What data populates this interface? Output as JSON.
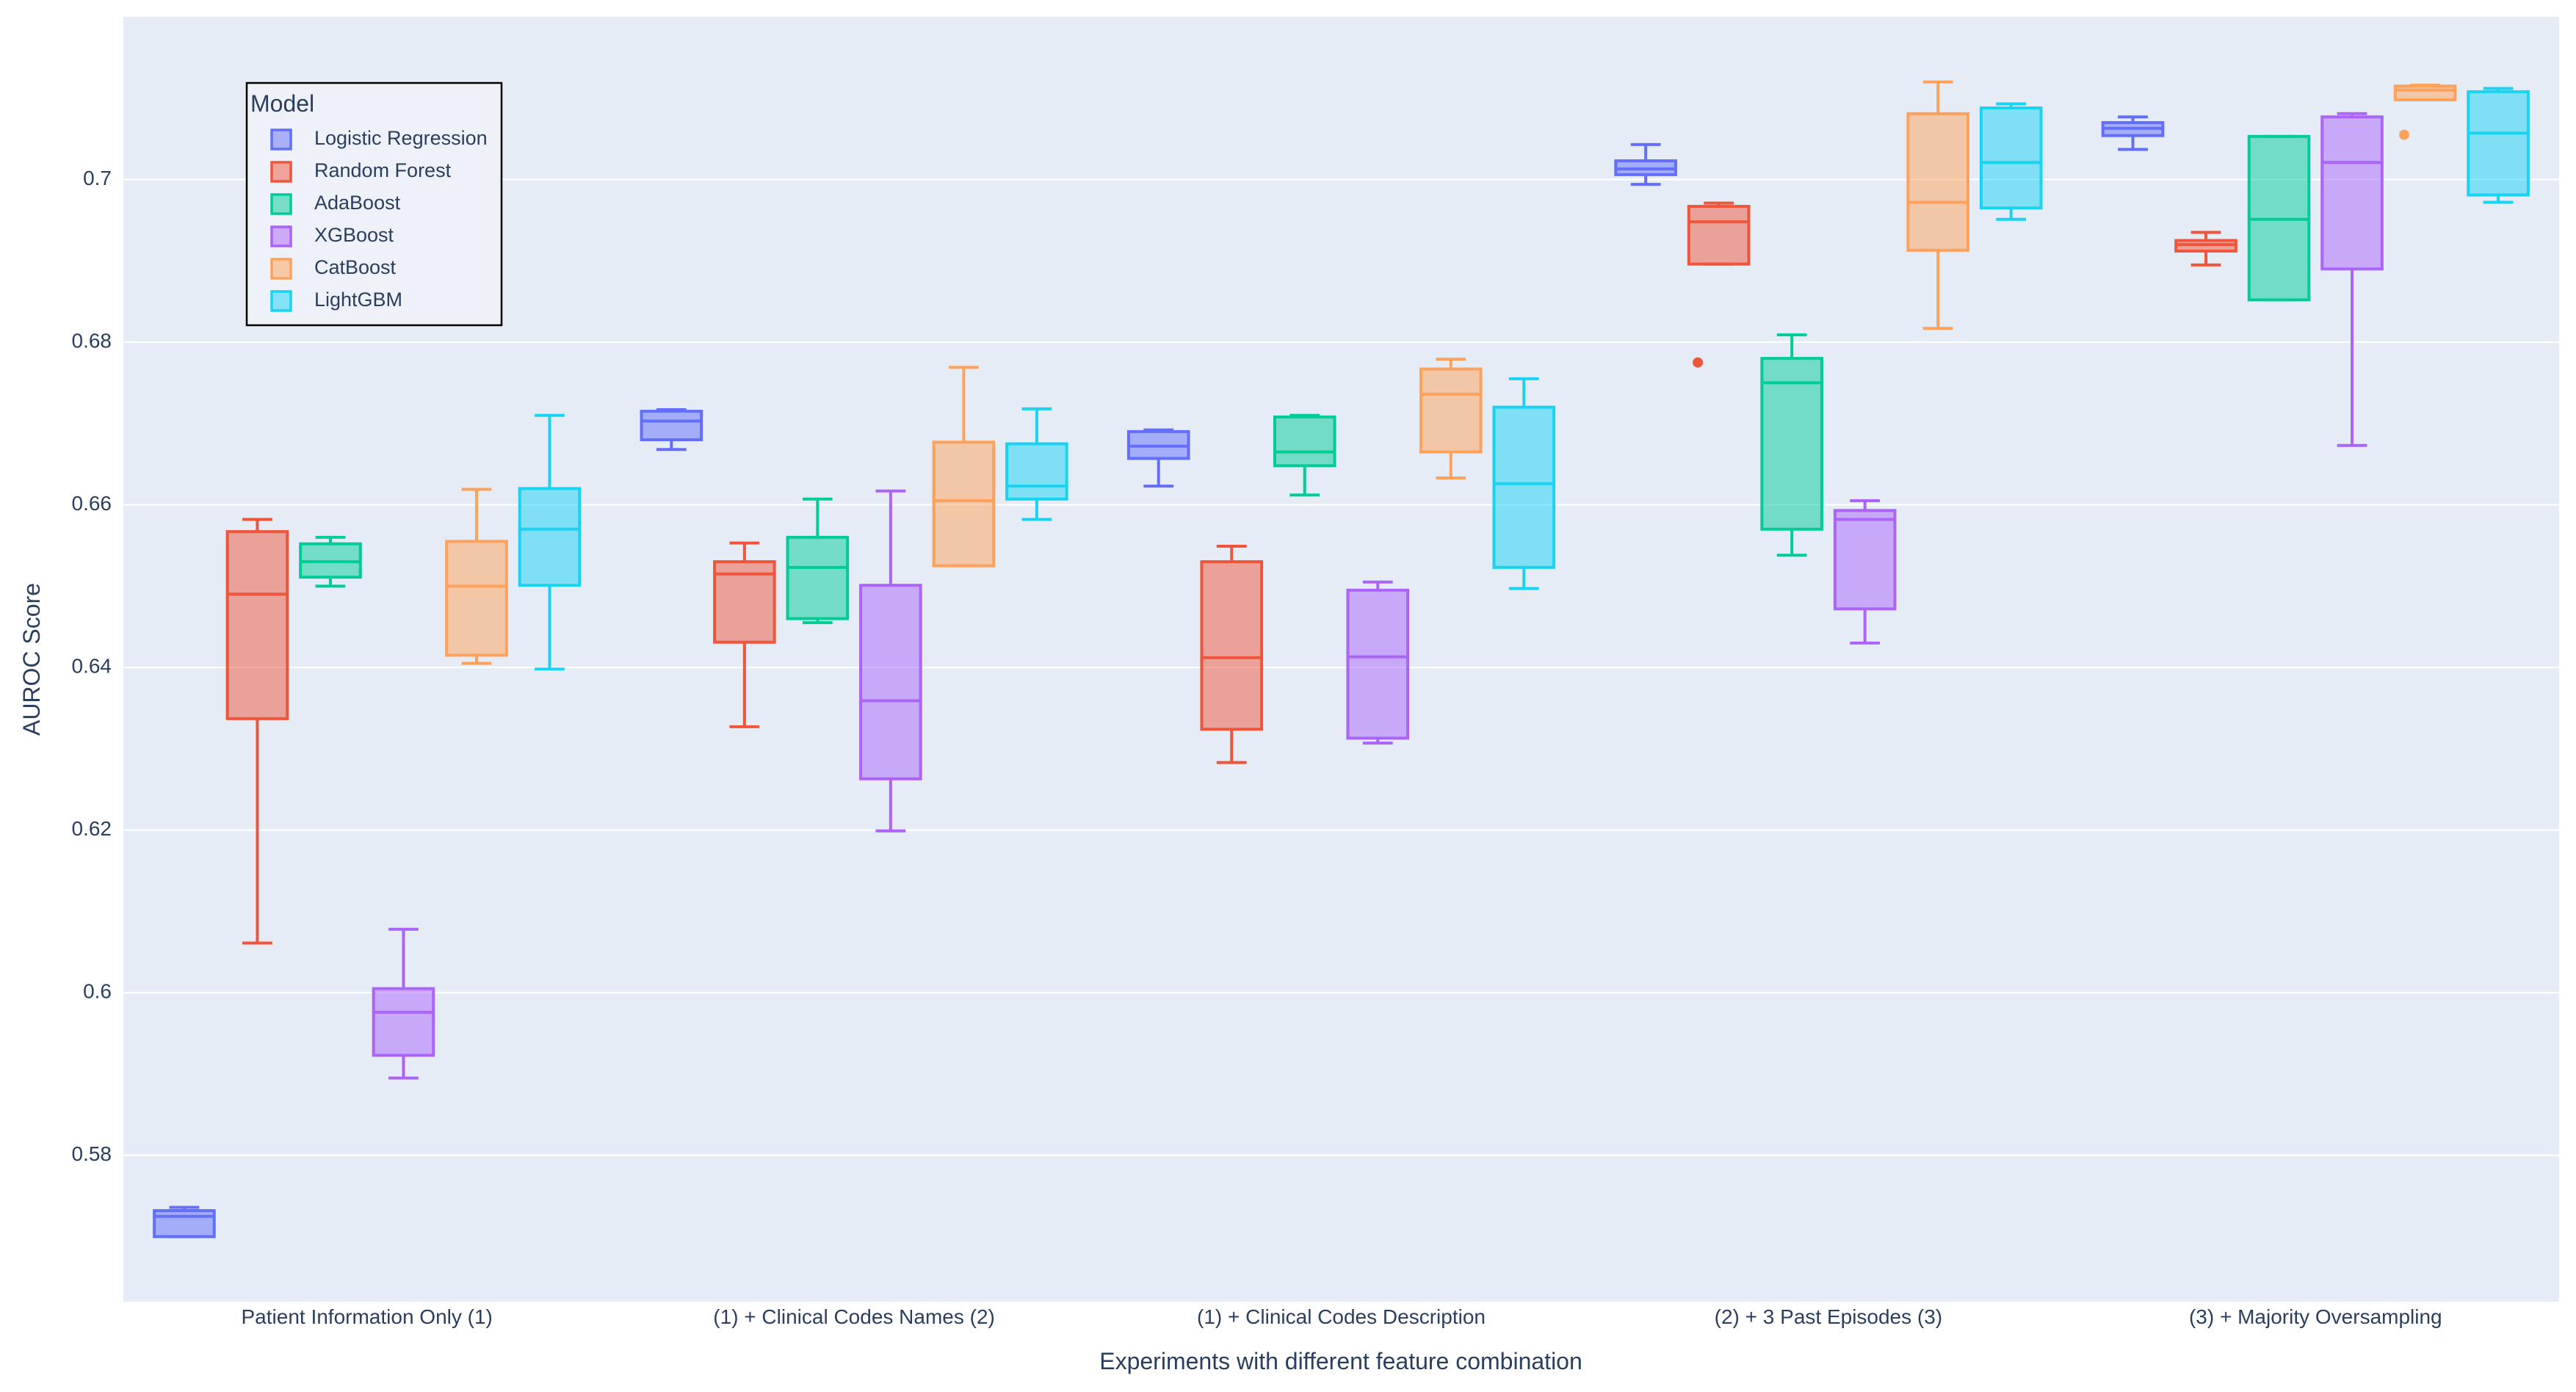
{
  "chart_data": {
    "type": "box",
    "title": "",
    "xlabel": "Experiments with different feature combination",
    "ylabel": "AUROC Score",
    "ylim": [
      0.562,
      0.72
    ],
    "yticks": [
      0.58,
      0.6,
      0.62,
      0.64,
      0.66,
      0.68,
      0.7
    ],
    "ytick_labels": [
      "0.58",
      "0.6",
      "0.62",
      "0.64",
      "0.66",
      "0.68",
      "0.7"
    ],
    "categories": [
      "Patient Information Only (1)",
      "(1) + Clinical Codes Names (2)",
      "(1) + Clinical Codes Description",
      "(2) + 3 Past Episodes (3)",
      "(3) + Majority Oversampling"
    ],
    "legend": {
      "title": "Model",
      "position": "top-left"
    },
    "series": [
      {
        "name": "Logistic Regression",
        "color": "#636efa",
        "boxes": [
          {
            "min": 0.57,
            "q1": 0.57,
            "median": 0.5725,
            "q3": 0.5732,
            "max": 0.5736,
            "outliers": []
          },
          {
            "min": 0.6668,
            "q1": 0.668,
            "median": 0.6703,
            "q3": 0.6715,
            "max": 0.6717,
            "outliers": []
          },
          {
            "min": 0.6623,
            "q1": 0.6657,
            "median": 0.6672,
            "q3": 0.669,
            "max": 0.6692,
            "outliers": []
          },
          {
            "min": 0.6994,
            "q1": 0.7006,
            "median": 0.7013,
            "q3": 0.7023,
            "max": 0.7043,
            "outliers": []
          },
          {
            "min": 0.7037,
            "q1": 0.7054,
            "median": 0.7063,
            "q3": 0.707,
            "max": 0.7077,
            "outliers": []
          }
        ]
      },
      {
        "name": "Random Forest",
        "color": "#ef553b",
        "boxes": [
          {
            "min": 0.6061,
            "q1": 0.6337,
            "median": 0.649,
            "q3": 0.6567,
            "max": 0.6582,
            "outliers": []
          },
          {
            "min": 0.6327,
            "q1": 0.6431,
            "median": 0.6515,
            "q3": 0.653,
            "max": 0.6553,
            "outliers": []
          },
          {
            "min": 0.6283,
            "q1": 0.6324,
            "median": 0.6412,
            "q3": 0.653,
            "max": 0.6549,
            "outliers": []
          },
          {
            "min": 0.6896,
            "q1": 0.6896,
            "median": 0.6948,
            "q3": 0.6967,
            "max": 0.6971,
            "outliers": [
              0.6775
            ]
          },
          {
            "min": 0.6895,
            "q1": 0.6912,
            "median": 0.692,
            "q3": 0.6925,
            "max": 0.6935,
            "outliers": []
          }
        ]
      },
      {
        "name": "AdaBoost",
        "color": "#00cc96",
        "boxes": [
          {
            "min": 0.65,
            "q1": 0.6511,
            "median": 0.653,
            "q3": 0.6552,
            "max": 0.656,
            "outliers": []
          },
          {
            "min": 0.6455,
            "q1": 0.646,
            "median": 0.6523,
            "q3": 0.656,
            "max": 0.6607,
            "outliers": []
          },
          {
            "min": 0.6612,
            "q1": 0.6648,
            "median": 0.6665,
            "q3": 0.6708,
            "max": 0.671,
            "outliers": []
          },
          {
            "min": 0.6538,
            "q1": 0.657,
            "median": 0.675,
            "q3": 0.678,
            "max": 0.6809,
            "outliers": []
          },
          {
            "min": 0.6852,
            "q1": 0.6852,
            "median": 0.6951,
            "q3": 0.7053,
            "max": 0.7053,
            "outliers": []
          }
        ]
      },
      {
        "name": "XGBoost",
        "color": "#ab63fa",
        "boxes": [
          {
            "min": 0.5895,
            "q1": 0.5923,
            "median": 0.5976,
            "q3": 0.6005,
            "max": 0.6078,
            "outliers": []
          },
          {
            "min": 0.6199,
            "q1": 0.6263,
            "median": 0.6359,
            "q3": 0.6501,
            "max": 0.6617,
            "outliers": []
          },
          {
            "min": 0.6307,
            "q1": 0.6313,
            "median": 0.6413,
            "q3": 0.6495,
            "max": 0.6505,
            "outliers": []
          },
          {
            "min": 0.643,
            "q1": 0.6472,
            "median": 0.6582,
            "q3": 0.6593,
            "max": 0.6605,
            "outliers": []
          },
          {
            "min": 0.6673,
            "q1": 0.689,
            "median": 0.7021,
            "q3": 0.7077,
            "max": 0.7081,
            "outliers": []
          }
        ]
      },
      {
        "name": "CatBoost",
        "color": "#ffa15a",
        "boxes": [
          {
            "min": 0.6405,
            "q1": 0.6415,
            "median": 0.65,
            "q3": 0.6555,
            "max": 0.6619,
            "outliers": []
          },
          {
            "min": 0.6525,
            "q1": 0.6525,
            "median": 0.6605,
            "q3": 0.6677,
            "max": 0.6769,
            "outliers": []
          },
          {
            "min": 0.6633,
            "q1": 0.6665,
            "median": 0.6736,
            "q3": 0.6767,
            "max": 0.6779,
            "outliers": []
          },
          {
            "min": 0.6817,
            "q1": 0.6913,
            "median": 0.6972,
            "q3": 0.7081,
            "max": 0.712,
            "outliers": []
          },
          {
            "min": 0.7098,
            "q1": 0.7098,
            "median": 0.711,
            "q3": 0.7115,
            "max": 0.7116,
            "outliers": [
              0.7055
            ]
          }
        ]
      },
      {
        "name": "LightGBM",
        "color": "#19d3f3",
        "boxes": [
          {
            "min": 0.6398,
            "q1": 0.6501,
            "median": 0.657,
            "q3": 0.662,
            "max": 0.671,
            "outliers": []
          },
          {
            "min": 0.6582,
            "q1": 0.6607,
            "median": 0.6623,
            "q3": 0.6675,
            "max": 0.6718,
            "outliers": []
          },
          {
            "min": 0.6497,
            "q1": 0.6523,
            "median": 0.6626,
            "q3": 0.672,
            "max": 0.6755,
            "outliers": []
          },
          {
            "min": 0.6951,
            "q1": 0.6965,
            "median": 0.7021,
            "q3": 0.7088,
            "max": 0.7093,
            "outliers": []
          },
          {
            "min": 0.6972,
            "q1": 0.6981,
            "median": 0.7057,
            "q3": 0.7108,
            "max": 0.7112,
            "outliers": []
          }
        ]
      }
    ]
  }
}
